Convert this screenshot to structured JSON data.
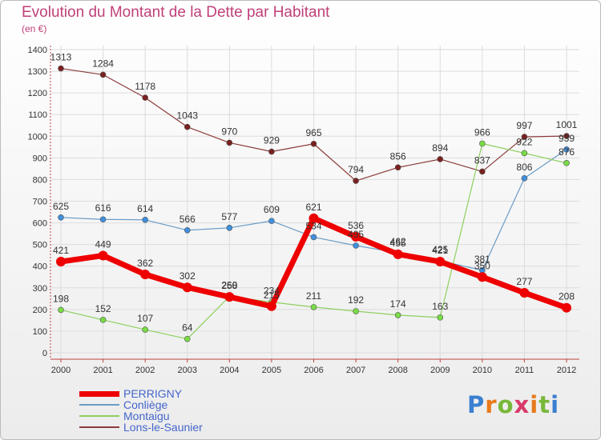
{
  "title": "Evolution du Montant de la Dette par Habitant",
  "subtitle": "(en €)",
  "brand": {
    "text": "Proxiti",
    "letter_colors": [
      "#3a7fd0",
      "#e87a1c",
      "#78b83a",
      "#d83a6a",
      "#e87a1c",
      "#78b83a",
      "#3a7fd0"
    ]
  },
  "chart_data": {
    "type": "line",
    "x": [
      2000,
      2001,
      2002,
      2003,
      2004,
      2005,
      2006,
      2007,
      2008,
      2009,
      2010,
      2011,
      2012
    ],
    "ylim": [
      0,
      1400
    ],
    "yticks": [
      0,
      100,
      200,
      300,
      400,
      500,
      600,
      700,
      800,
      900,
      1000,
      1100,
      1200,
      1300,
      1400
    ],
    "grid": true,
    "legend_position": "bottom-left",
    "series": [
      {
        "name": "Lons-le-Saunier",
        "color": "#7a2020",
        "line_color": "#8b3a3a",
        "width": 1.2,
        "marker": 3.5,
        "values": [
          1313,
          1284,
          1178,
          1043,
          970,
          929,
          965,
          794,
          856,
          894,
          837,
          997,
          1001
        ],
        "labels": [
          "1313",
          "1284",
          "1178",
          "1043",
          "970",
          "929",
          "965",
          "794",
          "856",
          "894",
          "837",
          "997",
          "1001"
        ]
      },
      {
        "name": "Conliège",
        "color": "#3f8fdd",
        "line_color": "#6a9cc8",
        "width": 1.2,
        "marker": 3.5,
        "values": [
          625,
          616,
          614,
          566,
          577,
          609,
          534,
          495,
          462,
          425,
          381,
          806,
          939
        ],
        "labels": [
          "625",
          "616",
          "614",
          "566",
          "577",
          "609",
          "534",
          "495",
          "462",
          "425",
          "381",
          "806",
          "939"
        ]
      },
      {
        "name": "Montaigu",
        "color": "#77dd44",
        "line_color": "#8ed060",
        "width": 1.2,
        "marker": 3.5,
        "values": [
          198,
          152,
          107,
          64,
          260,
          234,
          211,
          192,
          174,
          163,
          966,
          922,
          876
        ],
        "labels": [
          "198",
          "152",
          "107",
          "64",
          "260",
          "234",
          "211",
          "192",
          "174",
          "163",
          "966",
          "922",
          "876"
        ]
      },
      {
        "name": "PERRIGNY",
        "color": "#ee0000",
        "line_color": "#ee0000",
        "width": 7,
        "marker": 6,
        "values": [
          421,
          449,
          362,
          302,
          258,
          215,
          621,
          536,
          455,
          421,
          350,
          277,
          208
        ],
        "labels": [
          "421",
          "449",
          "362",
          "302",
          "258",
          "215",
          "621",
          "536",
          "455",
          "421",
          "350",
          "277",
          "208"
        ]
      }
    ],
    "legend_order": [
      "PERRIGNY",
      "Conliège",
      "Montaigu",
      "Lons-le-Saunier"
    ]
  }
}
